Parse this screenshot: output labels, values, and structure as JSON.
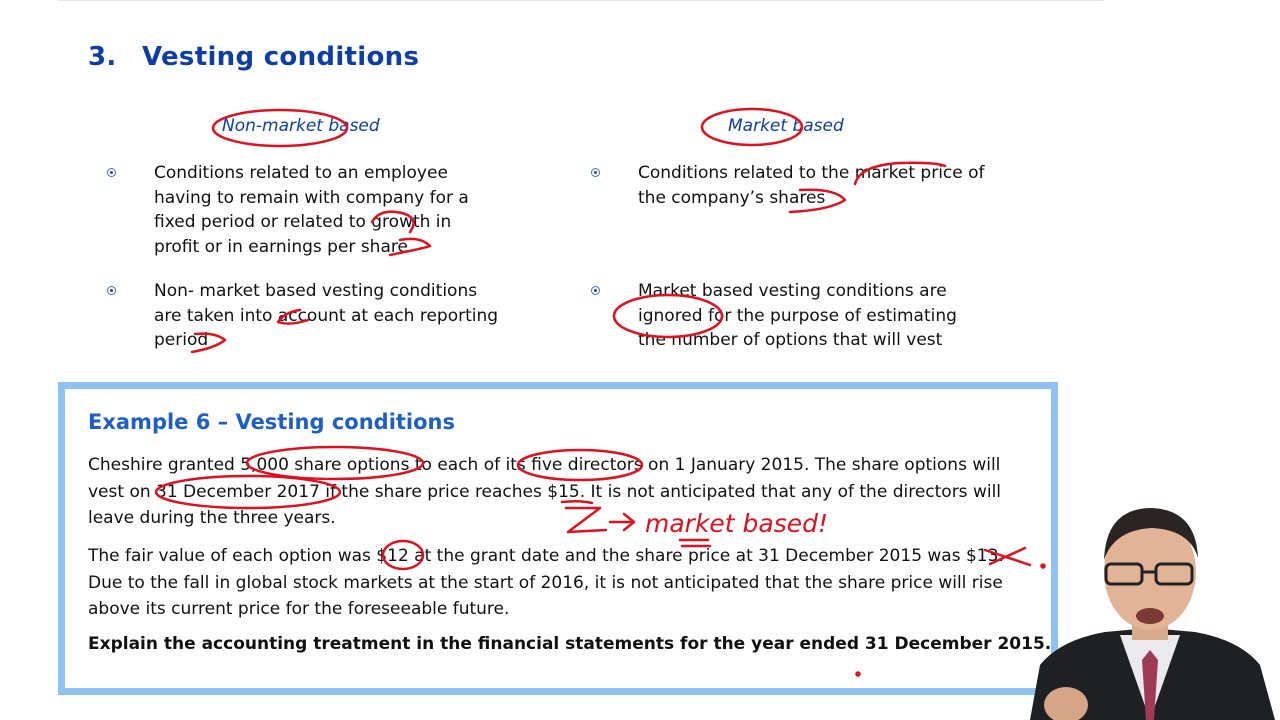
{
  "section": {
    "number": "3.",
    "title": "Vesting conditions"
  },
  "columns": {
    "left": {
      "heading": "Non-market based",
      "bullets": [
        {
          "lines": [
            "Conditions related to an employee",
            "having to remain with company for a",
            "fixed period or related to growth in",
            "profit or in earnings per share"
          ]
        },
        {
          "lines": [
            "Non- market based vesting conditions",
            "are taken into account at each reporting",
            "period"
          ]
        }
      ]
    },
    "right": {
      "heading": "Market based",
      "bullets": [
        {
          "lines": [
            "Conditions related to the market price of",
            "the company’s shares"
          ]
        },
        {
          "lines": [
            "Market based vesting conditions are",
            "ignored for the purpose of estimating",
            "the number of options that will vest"
          ]
        }
      ]
    }
  },
  "example": {
    "title": "Example 6 – Vesting conditions",
    "paragraph1": [
      "Cheshire granted 5,000 share options to each of its five directors on 1 January 2015.  The share options will",
      "vest on 31 December 2017 if the share price reaches $15.  It is not anticipated that any of the directors will",
      "leave during the three years."
    ],
    "paragraph2": [
      "The fair value of each option was $12 at the grant date and the share price at 31 December 2015 was $13.",
      "Due to the fall in global stock markets at the start of 2016, it is not anticipated that the share price will rise",
      "above its current price for the foreseeable future."
    ],
    "question": "Explain the accounting treatment in the financial statements for the year ended 31 December 2015."
  },
  "annotations": {
    "handwritten_note": "market based!",
    "ink_color": "#e0101e"
  },
  "colors": {
    "heading_blue": "#0d3ea8",
    "example_title_blue": "#1d5fc4",
    "box_border": "#8ec2f3"
  }
}
